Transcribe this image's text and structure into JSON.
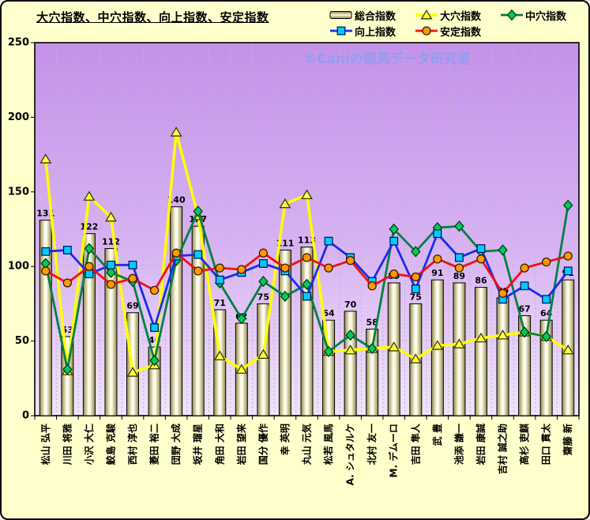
{
  "title": "大穴指数、中穴指数、向上指数、安定指数",
  "watermark": "©Caniの競馬データ研究室",
  "colors": {
    "background": "#ffffcc",
    "border": "#000000",
    "plot_gradient_top": "#c492e9",
    "plot_gradient_mid": "#d7b3f2",
    "plot_gradient_bottom": "#f0e3fb",
    "gridline": "#bdb5cd",
    "watermark": "#8f9ff2",
    "bar_edge": "#8f8a55",
    "bar_shade": "#b5ae77",
    "bar_highlight": "#fcfaea"
  },
  "chart_data": {
    "type": "bar+line combo",
    "title": "大穴指数、中穴指数、向上指数、安定指数",
    "ylim": [
      0,
      250
    ],
    "yticks": [
      0,
      50,
      100,
      150,
      200,
      250
    ],
    "grid": true,
    "legend_position": "top-right",
    "categories": [
      "松山 弘平",
      "川田 将雅",
      "小沢 大仁",
      "鮫島 克駿",
      "西村 淳也",
      "菱田 裕二",
      "団野 大成",
      "坂井 瑠星",
      "角田 大和",
      "岩田 望来",
      "国分 優作",
      "幸 英明",
      "丸山 元気",
      "松若 風馬",
      "A. シュタルケ",
      "北村 友一",
      "M. デムーロ",
      "吉田 隼人",
      "武 豊",
      "池添 謙一",
      "岩田 康誠",
      "吉村 誠之助",
      "高杉 吏麒",
      "田口 貫太",
      "齋藤 新"
    ],
    "series": [
      {
        "name": "総合指数",
        "type": "bar",
        "marker": "bar",
        "color": "#b5ae77",
        "marker_fill": "#fcfaea",
        "show_labels": true,
        "values": [
          131,
          53,
          122,
          112,
          69,
          46,
          140,
          127,
          71,
          62,
          75,
          111,
          113,
          64,
          70,
          58,
          89,
          75,
          91,
          89,
          86,
          79,
          67,
          64,
          91
        ]
      },
      {
        "name": "大穴指数",
        "type": "line",
        "marker": "triangle",
        "color": "#ffff00",
        "marker_fill": "#ffff44",
        "marker_stroke": "#3a3a00",
        "values": [
          172,
          30,
          147,
          133,
          29,
          34,
          190,
          134,
          40,
          31,
          41,
          142,
          148,
          43,
          44,
          45,
          46,
          38,
          47,
          48,
          52,
          54,
          56,
          53,
          44
        ]
      },
      {
        "name": "中穴指数",
        "type": "line",
        "marker": "diamond",
        "color": "#008040",
        "marker_fill": "#00cc55",
        "marker_stroke": "#003a20",
        "values": [
          102,
          31,
          112,
          96,
          90,
          37,
          104,
          137,
          89,
          65,
          90,
          80,
          88,
          43,
          54,
          45,
          125,
          110,
          126,
          127,
          110,
          111,
          56,
          53,
          141
        ]
      },
      {
        "name": "向上指数",
        "type": "line",
        "marker": "square",
        "color": "#1a2cee",
        "marker_fill": "#00ccff",
        "marker_stroke": "#001a60",
        "values": [
          110,
          111,
          95,
          101,
          101,
          59,
          107,
          108,
          91,
          96,
          102,
          97,
          80,
          117,
          106,
          90,
          117,
          85,
          122,
          106,
          112,
          78,
          87,
          78,
          97
        ]
      },
      {
        "name": "安定指数",
        "type": "line",
        "marker": "circle",
        "color": "#ee1111",
        "marker_fill": "#ff9900",
        "marker_stroke": "#401800",
        "values": [
          97,
          89,
          100,
          88,
          92,
          84,
          109,
          97,
          99,
          98,
          109,
          99,
          106,
          99,
          104,
          87,
          95,
          93,
          105,
          99,
          105,
          82,
          99,
          103,
          107
        ]
      }
    ]
  }
}
